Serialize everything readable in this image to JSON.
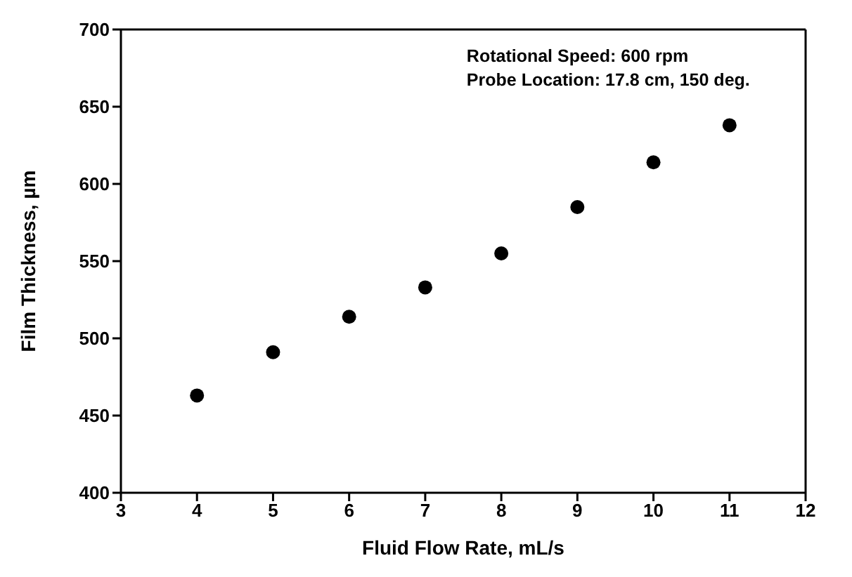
{
  "chart_data": {
    "type": "scatter",
    "xlabel": "Fluid Flow Rate, mL/s",
    "ylabel": "Film Thickness, µm",
    "annotations": [
      "Rotational Speed: 600 rpm",
      "Probe Location: 17.8 cm, 150 deg."
    ],
    "x": [
      4,
      5,
      6,
      7,
      8,
      9,
      10,
      11
    ],
    "series": [
      {
        "color": "#000000",
        "values": [
          463,
          491,
          514,
          533,
          555,
          585,
          614,
          638
        ]
      }
    ],
    "xlim": [
      3,
      12
    ],
    "xticks": [
      3,
      4,
      5,
      6,
      7,
      8,
      9,
      10,
      11,
      12
    ],
    "ylim": [
      400,
      700
    ],
    "yticks": [
      400,
      450,
      500,
      550,
      600,
      650,
      700
    ],
    "grid": false,
    "legend": false,
    "marker": "circle"
  }
}
